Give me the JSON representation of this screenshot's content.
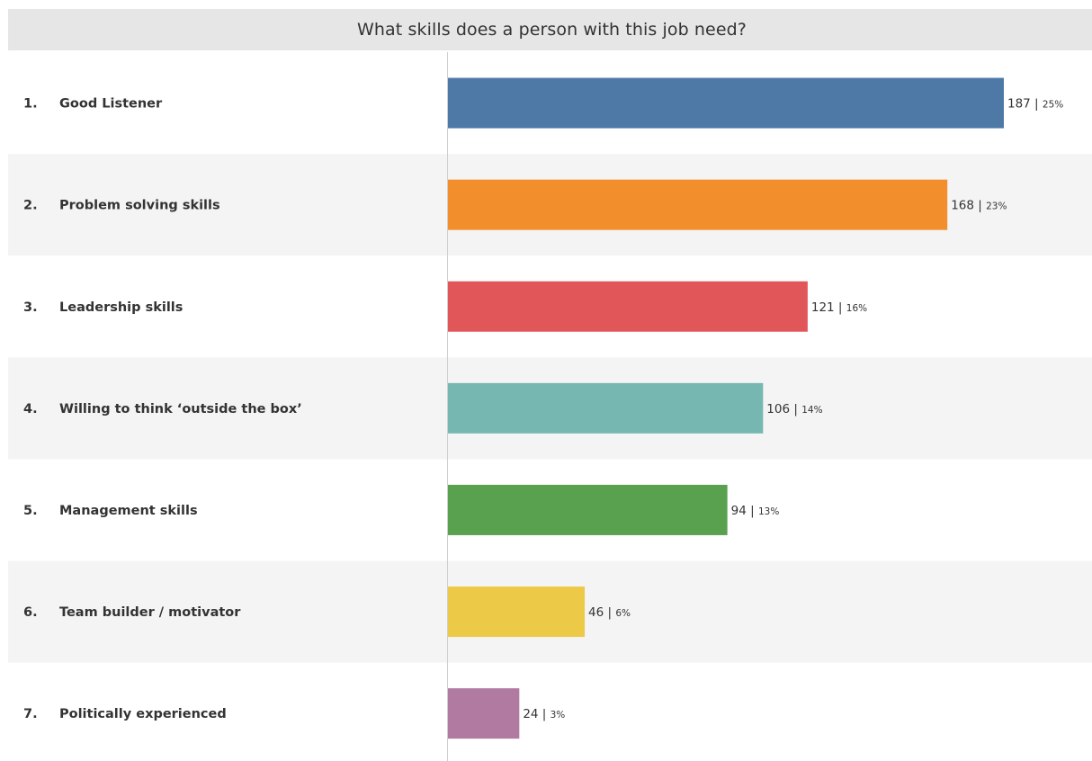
{
  "chart_data": {
    "type": "bar",
    "orientation": "horizontal",
    "title": "What skills does a person with this  job need?",
    "categories": [
      "Good Listener",
      "Problem solving skills",
      "Leadership skills",
      "Willing to think ‘outside the box’",
      "Management skills",
      "Team builder / motivator",
      "Politically experienced"
    ],
    "ranks": [
      "1.",
      "2.",
      "3.",
      "4.",
      "5.",
      "6.",
      "7."
    ],
    "values": [
      187,
      168,
      121,
      106,
      94,
      46,
      24
    ],
    "percent_labels": [
      "25%",
      "23%",
      "16%",
      "14%",
      "13%",
      "6%",
      "3%"
    ],
    "colors": [
      "#4e79a7",
      "#f28e2b",
      "#e15759",
      "#76b7b2",
      "#59a14f",
      "#edc948",
      "#b07aa1"
    ],
    "xlim": [
      0,
      200
    ],
    "grid": false,
    "legend": "none",
    "row_banding": true
  }
}
